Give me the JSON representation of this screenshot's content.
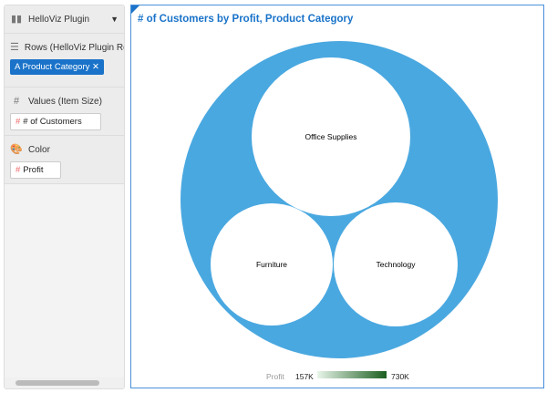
{
  "panel": {
    "plugin": "HelloViz Plugin",
    "rows_label": "Rows (HelloViz Plugin Rows)",
    "rows_pill": "Product Category",
    "values_label": "Values (Item Size)",
    "values_pill": "# of Customers",
    "color_label": "Color",
    "color_pill": "Profit"
  },
  "chart_data": {
    "type": "circle-packing",
    "title": "# of Customers by Profit, Product Category",
    "categories": [
      "Office Supplies",
      "Furniture",
      "Technology"
    ],
    "outer_color": "#4aa8e0",
    "circle_color": "#ffffff",
    "legend": {
      "label": "Profit",
      "min": "157K",
      "max": "730K",
      "colors": [
        "#e8f5e9",
        "#1b5e20"
      ]
    }
  }
}
